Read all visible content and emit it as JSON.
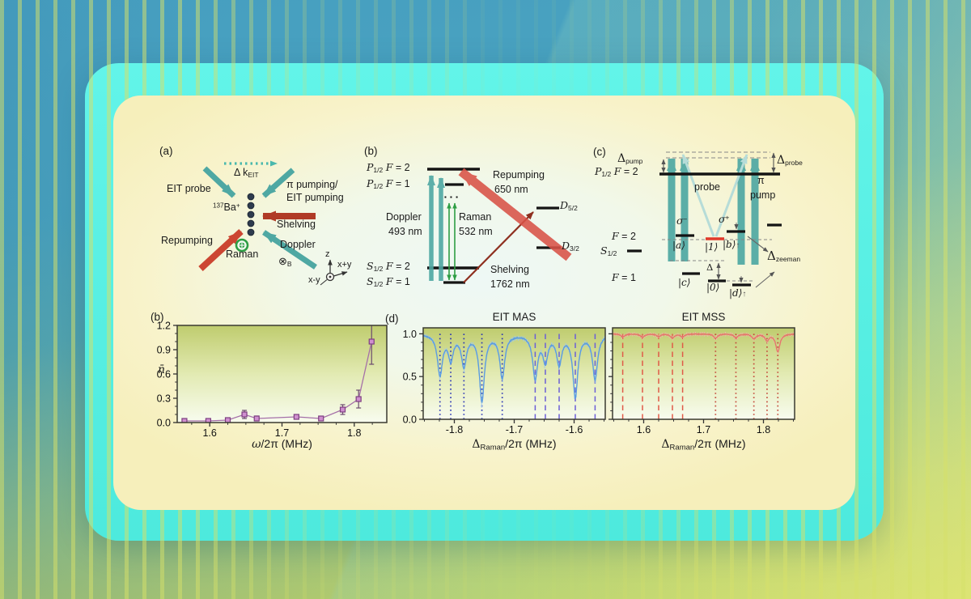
{
  "panel_a": {
    "label": "(a)",
    "dk_main": "Δ k",
    "dk_sub": "EIT",
    "eit_probe": "EIT probe",
    "pi_pump_1": "π pumping/",
    "pi_pump_2": "EIT pumping",
    "ion_sup": "137",
    "ion_main": "Ba",
    "ion_charge": "+",
    "shelving": "Shelving",
    "repumping": "Repumping",
    "raman": "Raman",
    "doppler": "Doppler",
    "b_field": "⊗",
    "b_field_sub": "B",
    "axis_z": "z",
    "axis_xpy": "x+y",
    "axis_xmy": "x-y"
  },
  "panel_b": {
    "label": "(b)",
    "p": "P",
    "s": "S",
    "d": "D",
    "half": "1/2",
    "f": "F",
    "eq2": "= 2",
    "eq1": "= 1",
    "d52_sub": "5/2",
    "d32_sub": "3/2",
    "virtual_dots": "▪ ▪ ▪",
    "doppler_1": "Doppler",
    "doppler_2": "493 nm",
    "raman_1": "Raman",
    "raman_2": "532 nm",
    "repumping_1": "Repumping",
    "repumping_2": "650 nm",
    "shelving_1": "Shelving",
    "shelving_2": "1762 nm"
  },
  "panel_c": {
    "label": "(c)",
    "delta": "Δ",
    "pump_sub": "pump",
    "probe_sub": "probe",
    "p": "P",
    "half": "1/2",
    "f": "F",
    "eq2": "= 2",
    "eq1": "= 1",
    "s": "S",
    "probe": "probe",
    "pi": "π",
    "pump": "pump",
    "sigma": "σ",
    "minus": "−",
    "plus": "+",
    "ket_a": "|a⟩",
    "ket_b": "|b⟩",
    "ket_c": "|c⟩",
    "ket_d": "|d⟩",
    "ket_1": "|1⟩",
    "ket_0": "|0⟩",
    "up": "↑",
    "delta_small": "Δ",
    "zeeman_sub": "zeeman"
  },
  "colors": {
    "frame_cyan": "#55efe2",
    "teal_arrow": "#4fa8a3",
    "light_teal_arrow": "#b6dcd8",
    "red_arrow": "#cc4632",
    "dark_red": "#8e2f1f",
    "green": "#2e9e44",
    "plot_bg_top": "#bfcc6e",
    "plot_bg_mid": "#e2eab2",
    "plot_bg_bottom": "#f8fcef"
  },
  "chart_data": [
    {
      "type": "scatter",
      "panel_label": "(b)",
      "title": "",
      "xlabel": "ω/2π (MHz)",
      "xlabel_omega": "ω",
      "xlabel_rest": "/2π (MHz)",
      "ylabel": "n̄",
      "xlim": [
        1.555,
        1.845
      ],
      "ylim": [
        0,
        1.2
      ],
      "xticks": [
        1.6,
        1.7,
        1.8
      ],
      "yticks": [
        0,
        0.3,
        0.6,
        0.9,
        1.2
      ],
      "x_minor_step": 0.025,
      "y_minor_step": 0.1,
      "x": [
        1.565,
        1.598,
        1.625,
        1.648,
        1.665,
        1.72,
        1.754,
        1.784,
        1.806,
        1.824
      ],
      "y": [
        0.02,
        0.02,
        0.03,
        0.1,
        0.05,
        0.07,
        0.05,
        0.16,
        0.29,
        1.0
      ],
      "yerr": [
        0.02,
        0.02,
        0.02,
        0.05,
        0.03,
        0.02,
        0.02,
        0.06,
        0.11,
        0.28
      ],
      "line_color": "#a570a8",
      "marker_color": "#cf8fcf",
      "marker_edge": "#7d3f80",
      "err_color": "#6b4a6e"
    },
    {
      "type": "line",
      "panel_label": "(d)",
      "title": "EIT MAS",
      "xlabel": "Δ_Raman/2π (MHz)",
      "xlabel_delta": "Δ",
      "xlabel_sub": "Raman",
      "xlabel_rest": "/2π (MHz)",
      "ylabel": "",
      "xlim": [
        -1.852,
        -1.548
      ],
      "ylim": [
        0,
        1.07
      ],
      "xticks": [
        -1.8,
        -1.7,
        -1.6
      ],
      "yticks": [
        0,
        0.5,
        1
      ],
      "x_minor_step": 0.025,
      "y_minor_step": 0.1,
      "baseline": 1.0,
      "dip_width": 0.005,
      "noise": 0.012,
      "seed": 3,
      "dips": [
        {
          "x": -1.824,
          "depth": 0.47
        },
        {
          "x": -1.806,
          "depth": 0.28
        },
        {
          "x": -1.784,
          "depth": 0.36
        },
        {
          "x": -1.754,
          "depth": 0.77
        },
        {
          "x": -1.72,
          "depth": 0.5
        },
        {
          "x": -1.665,
          "depth": 0.5
        },
        {
          "x": -1.648,
          "depth": 0.3
        },
        {
          "x": -1.625,
          "depth": 0.34
        },
        {
          "x": -1.598,
          "depth": 0.72
        },
        {
          "x": -1.565,
          "depth": 0.52
        }
      ],
      "guides_dotted": [
        -1.824,
        -1.806,
        -1.784,
        -1.754,
        -1.72
      ],
      "guides_dashed": [
        -1.665,
        -1.648,
        -1.625,
        -1.598,
        -1.565
      ],
      "guide_dotted_color": "#2a35b5",
      "guide_dashed_color": "#6b5fd6",
      "line_color": "#5b9ce0",
      "err_color": "#9ec9f0"
    },
    {
      "type": "line",
      "panel_label": "",
      "title": "EIT MSS",
      "xlabel": "Δ_Raman/2π (MHz)",
      "xlabel_delta": "Δ",
      "xlabel_sub": "Raman",
      "xlabel_rest": "/2π (MHz)",
      "ylabel": "",
      "xlim": [
        1.548,
        1.852
      ],
      "ylim": [
        0,
        1.07
      ],
      "xticks": [
        1.6,
        1.7,
        1.8
      ],
      "yticks": [
        0,
        0.5,
        1
      ],
      "x_minor_step": 0.025,
      "y_minor_step": 0.1,
      "baseline": 1.0,
      "dip_width": 0.004,
      "noise": 0.009,
      "seed": 7,
      "dips": [
        {
          "x": 1.565,
          "depth": 0.035
        },
        {
          "x": 1.598,
          "depth": 0.04
        },
        {
          "x": 1.625,
          "depth": 0.03
        },
        {
          "x": 1.648,
          "depth": 0.045
        },
        {
          "x": 1.665,
          "depth": 0.035
        },
        {
          "x": 1.72,
          "depth": 0.05
        },
        {
          "x": 1.754,
          "depth": 0.045
        },
        {
          "x": 1.784,
          "depth": 0.055
        },
        {
          "x": 1.806,
          "depth": 0.075
        },
        {
          "x": 1.824,
          "depth": 0.21
        }
      ],
      "guides_dashed": [
        1.565,
        1.598,
        1.625,
        1.648,
        1.665
      ],
      "guides_dotted": [
        1.72,
        1.754,
        1.784,
        1.806,
        1.824
      ],
      "guide_dotted_color": "#c4483a",
      "guide_dashed_color": "#e05a48",
      "line_color": "#e4786b",
      "err_color": "#f2b6ae"
    }
  ]
}
